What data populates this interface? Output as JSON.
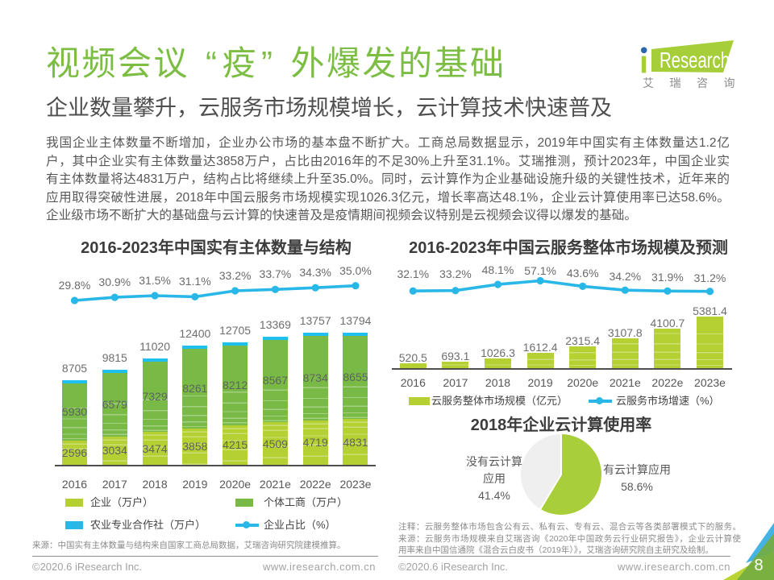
{
  "page": {
    "title": "视频会议“疫”外爆发的基础",
    "subtitle": "企业数量攀升，云服务市场规模增长，云计算技术快速普及",
    "body_lines": [
      "我国企业主体数量不断增加，企业办公市场的基本盘不断扩大。工商总局数据显示，2019年中国实有主体数量达1.2亿",
      "户，其中企业实有主体数量达3858万户，占比由2016年的不足30%上升至31.1%。艾瑞推测，预计2023年，中国企业实",
      "有主体数量将达4831万户，结构占比将继续上升至35.0%。同时，云计算作为企业基础设施升级的关键性技术，近年来的",
      "应用取得突破性进展，2018年中国云服务市场规模实现1026.3亿元，增长率高达48.1%，企业云计算使用率已达58.6%。",
      "企业级市场不断扩大的基础盘与云计算的快速普及是疫情期间视频会议特别是云视频会议得以爆发的基础。"
    ],
    "page_number": "8"
  },
  "logo": {
    "brand_i": "i",
    "brand": "Research",
    "subtext": "艾瑞咨询"
  },
  "footer": {
    "copyright": "©2020.6 iResearch Inc.",
    "website": "www.iresearch.com.cn"
  },
  "colors": {
    "brand_green": "#7cbe43",
    "bar_yellowgreen": "#b5d033",
    "bar_green": "#79ba46",
    "cyan": "#29b7e8",
    "cyan_cap": "#1fc0ef",
    "pie_green": "#a8cf39",
    "pie_gray": "#efefef",
    "logo_green": "#a5ce39",
    "logo_dot_blue": "#2e66ac",
    "corner_blue": "#44b2e4",
    "corner_green": "#74ac41",
    "corner_yellowgreen": "#b9d434",
    "corner_olive": "#8fb42e"
  },
  "chart_data": [
    {
      "id": "subjects",
      "type": "bar",
      "subtype": "stacked-bar-with-line",
      "title": "2016-2023年中国实有主体数量与结构",
      "categories": [
        "2016",
        "2017",
        "2018",
        "2019",
        "2020e",
        "2021e",
        "2022e",
        "2023e"
      ],
      "series": [
        {
          "name": "企业（万户）",
          "values": [
            2596,
            3034,
            3474,
            3858,
            4215,
            4509,
            4719,
            4831
          ]
        },
        {
          "name": "个体工商（万户）",
          "values": [
            5930,
            6579,
            7329,
            8261,
            8212,
            8567,
            8734,
            8655
          ]
        },
        {
          "name": "农业专业合作社（万户）"
        }
      ],
      "totals": [
        8705,
        9815,
        11020,
        12400,
        12705,
        13369,
        13757,
        13794
      ],
      "line": {
        "name": "企业占比（%）",
        "values": [
          29.8,
          30.9,
          31.5,
          31.1,
          33.2,
          33.7,
          34.3,
          35.0
        ]
      },
      "ylim": [
        0,
        14000
      ],
      "line_ylim": [
        29,
        36
      ],
      "grid": false,
      "legend_position": "bottom",
      "source": "来源：中国实有主体数量与结构来自国家工商总局数据，艾瑞咨询研究院建模推算。"
    },
    {
      "id": "cloud",
      "type": "bar",
      "subtype": "bar-with-line",
      "title": "2016-2023年中国云服务整体市场规模及预测",
      "categories": [
        "2016",
        "2017",
        "2018",
        "2019",
        "2020e",
        "2021e",
        "2022e",
        "2023e"
      ],
      "series": [
        {
          "name": "云服务整体市场规模（亿元）",
          "values": [
            520.5,
            693.1,
            1026.3,
            1612.4,
            2315.4,
            3107.8,
            4100.7,
            5381.4
          ]
        }
      ],
      "line": {
        "name": "云服务市场增速（%）",
        "values": [
          32.1,
          33.2,
          48.1,
          57.1,
          43.6,
          34.2,
          31.9,
          31.2
        ]
      },
      "ylim": [
        0,
        5500
      ],
      "line_ylim": [
        25,
        60
      ],
      "grid": false,
      "legend_position": "bottom"
    },
    {
      "id": "cloud-usage",
      "type": "pie",
      "title": "2018年企业云计算使用率",
      "slices": [
        {
          "label": "有云计算应用",
          "label_lines": [
            "有云计算应用",
            "58.6%"
          ],
          "value": 58.6
        },
        {
          "label": "没有云计算应用",
          "label_lines": [
            "没有云计算",
            "应用",
            "41.4%"
          ],
          "value": 41.4
        }
      ],
      "notes": [
        "注释：云服务整体市场包含公有云、私有云、专有云、混合云等各类部署模式下的服务。",
        "来源：云服务市场规模来自艾瑞咨询《2020年中国政务云行业研究报告》，企业云计算使",
        "用率来自中国信通院《混合云白皮书（2019年）》，艾瑞咨询研究院自主研究及绘制。"
      ]
    }
  ]
}
